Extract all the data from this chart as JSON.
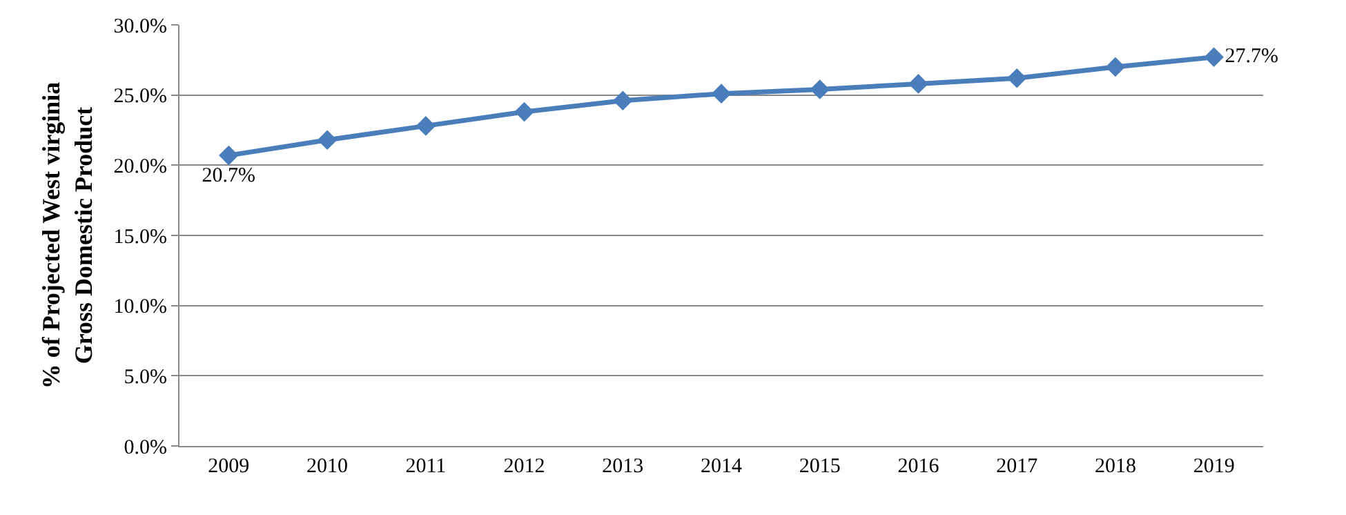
{
  "chart_data": {
    "type": "line",
    "ylabel": "% of Projected West virginia Gross Domestic Product",
    "categories": [
      "2009",
      "2010",
      "2011",
      "2012",
      "2013",
      "2014",
      "2015",
      "2016",
      "2017",
      "2018",
      "2019"
    ],
    "series": [
      {
        "color": "#4a7ebb",
        "values": [
          20.7,
          21.8,
          22.8,
          23.8,
          24.6,
          25.1,
          25.4,
          25.8,
          26.2,
          27.0,
          27.7
        ],
        "value_labels": [
          "20.7%",
          null,
          null,
          null,
          null,
          null,
          null,
          null,
          null,
          null,
          "27.7%"
        ]
      }
    ],
    "ylim": [
      0,
      30
    ],
    "yticks": [
      {
        "value": 0,
        "label": "0.0%"
      },
      {
        "value": 5,
        "label": "5.0%"
      },
      {
        "value": 10,
        "label": "10.0%"
      },
      {
        "value": 15,
        "label": "15.0%"
      },
      {
        "value": 20,
        "label": "20.0%"
      },
      {
        "value": 25,
        "label": "25.0%"
      },
      {
        "value": 30,
        "label": "30.0%"
      }
    ],
    "grid": "y",
    "marker": "diamond",
    "line_style": "solid",
    "legend": false
  }
}
